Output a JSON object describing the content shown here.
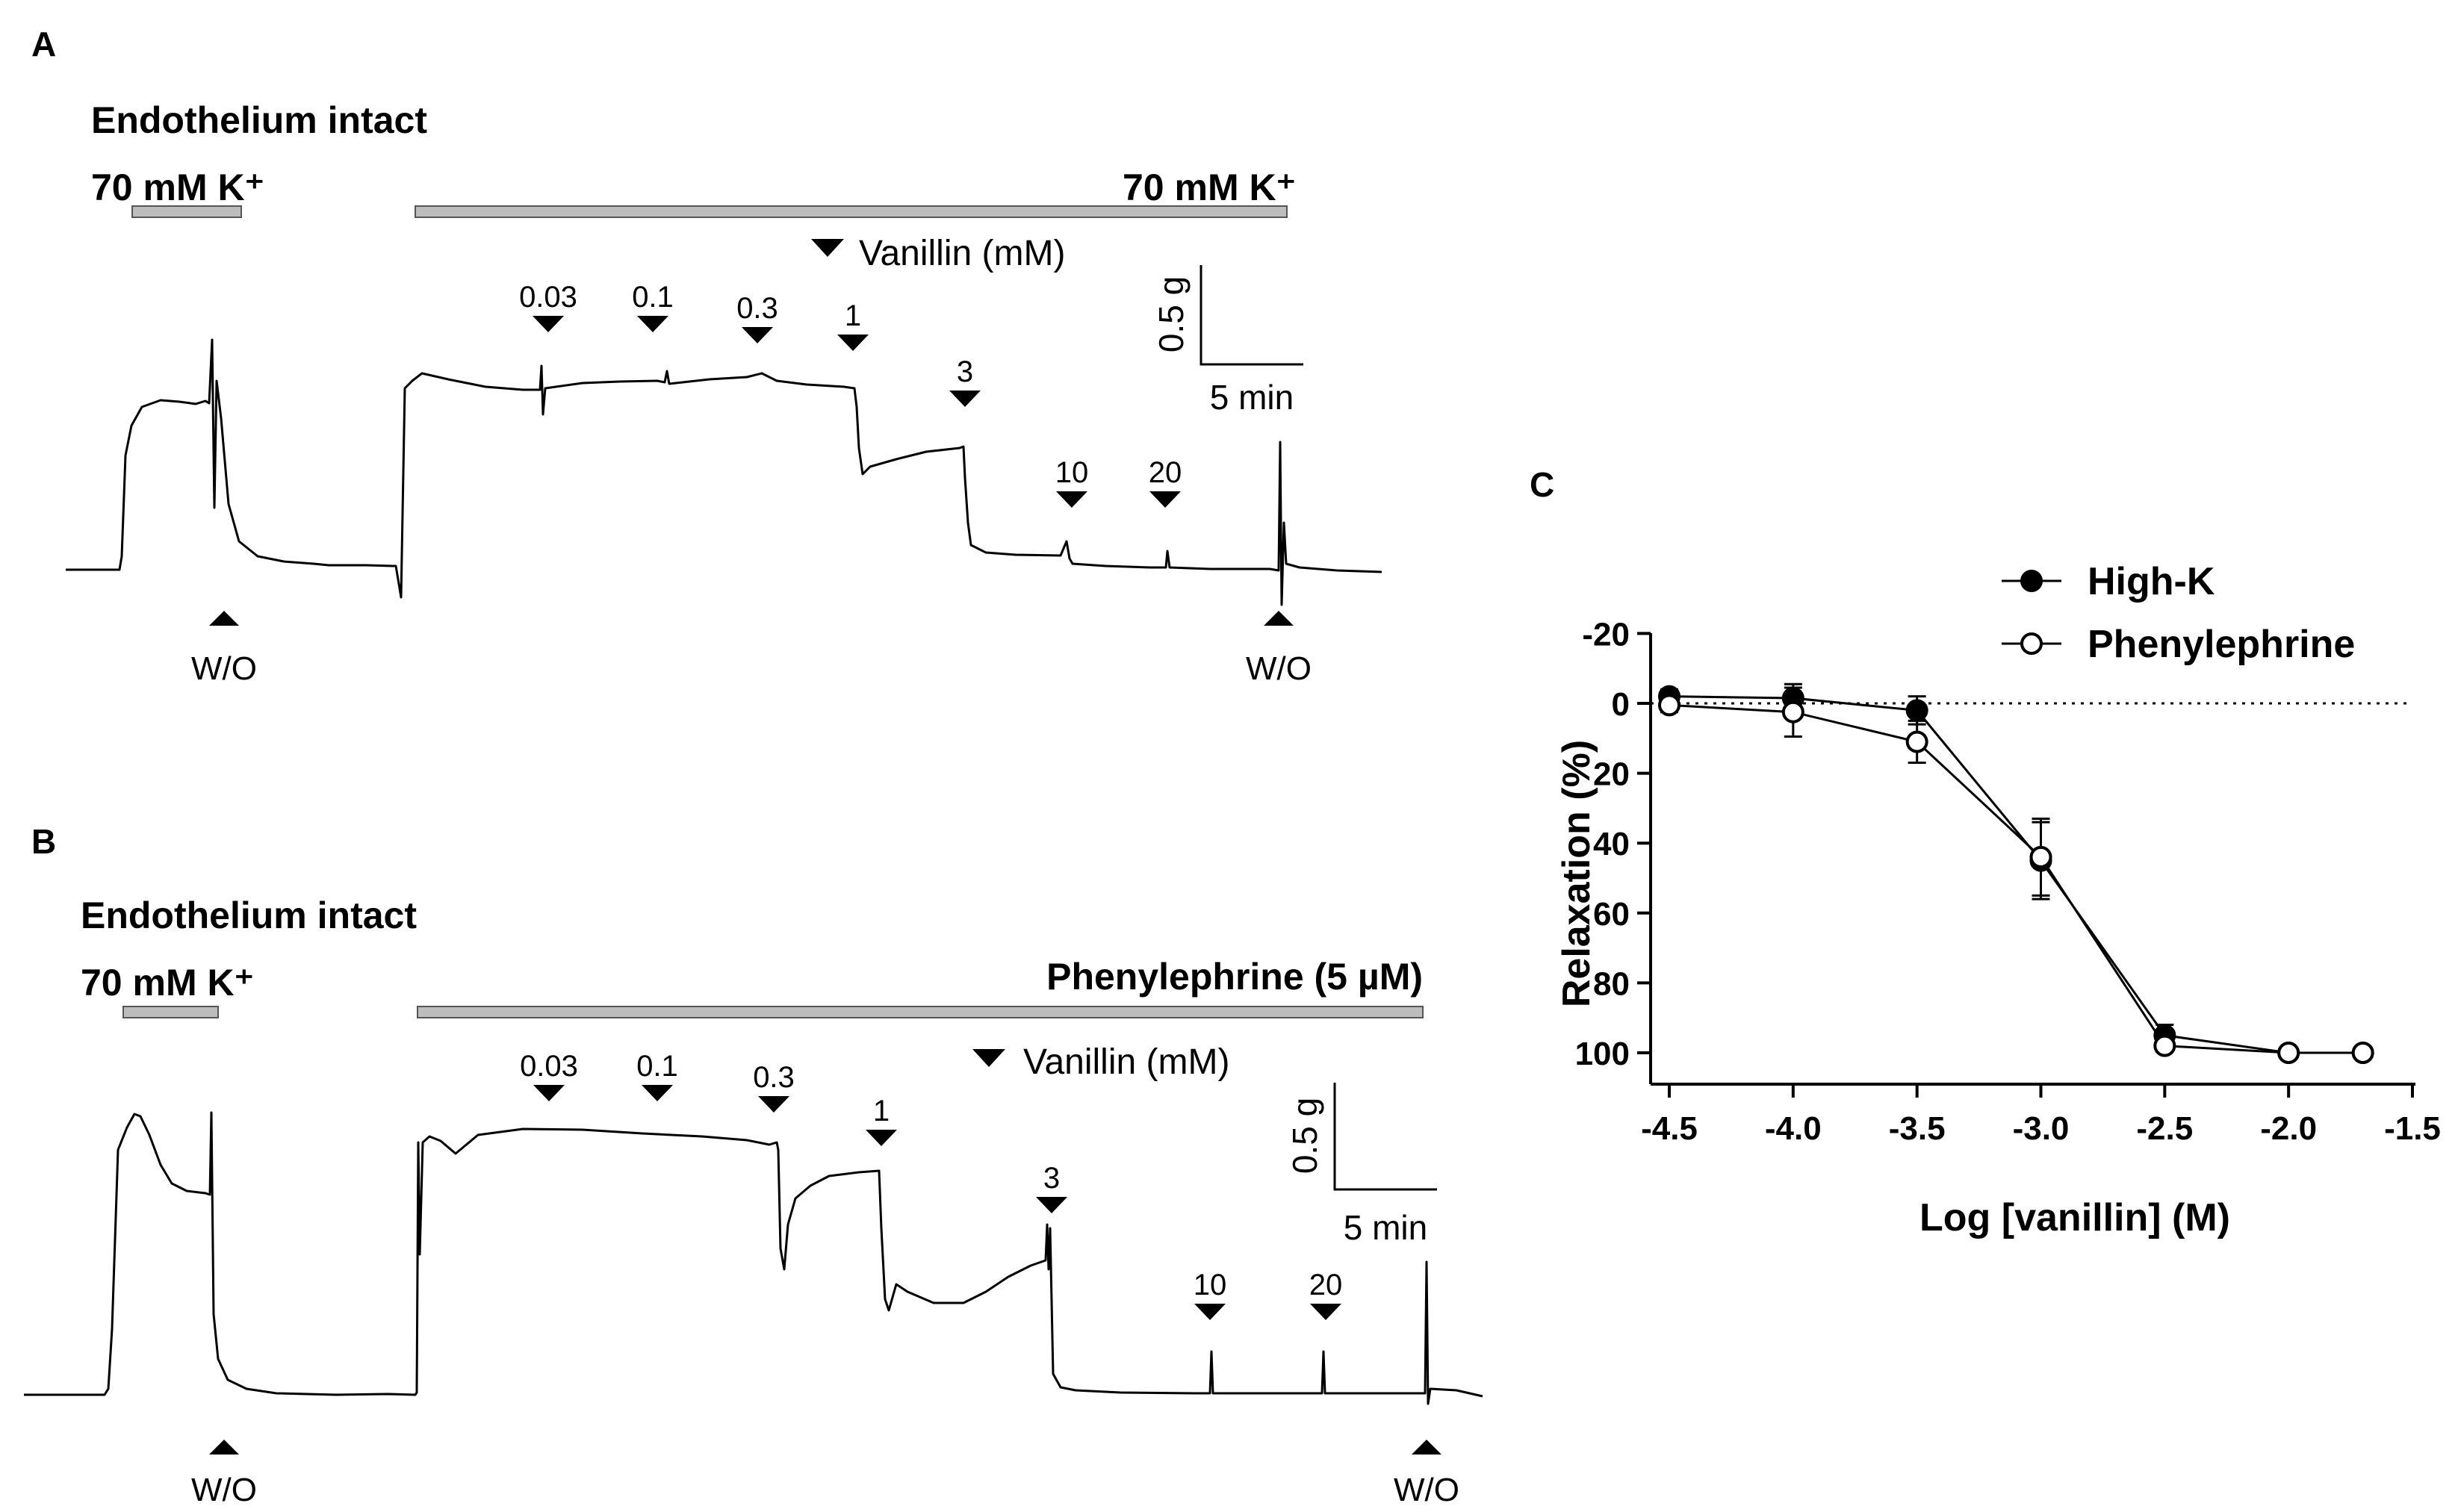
{
  "panels": {
    "A": {
      "letter": "A",
      "title": "Endothelium intact",
      "first_stim": "70 mM K⁺",
      "second_stim": "70 mM K⁺",
      "drug_legend": "Vanillin (mM)",
      "doses": [
        "0.03",
        "0.1",
        "0.3",
        "1",
        "3",
        "10",
        "20"
      ],
      "washout": [
        "W/O",
        "W/O"
      ],
      "scale_force": "0.5 g",
      "scale_time": "5 min"
    },
    "B": {
      "letter": "B",
      "title": "Endothelium intact",
      "first_stim": "70 mM K⁺",
      "second_stim": "Phenylephrine (5 µM)",
      "drug_legend": "Vanillin (mM)",
      "doses": [
        "0.03",
        "0.1",
        "0.3",
        "1",
        "3",
        "10",
        "20"
      ],
      "washout": [
        "W/O",
        "W/O"
      ],
      "scale_force": "0.5 g",
      "scale_time": "5 min"
    }
  },
  "chart_data": {
    "panel_label": "C",
    "type": "line",
    "xlabel": "Log [vanillin] (M)",
    "ylabel": "Relaxation (%)",
    "xlim": [
      -4.5,
      -1.5
    ],
    "ylim": [
      -20,
      110
    ],
    "y_inverted": true,
    "x_ticks": [
      "-4.5",
      "-4.0",
      "-3.5",
      "-3.0",
      "-2.5",
      "-2.0",
      "-1.5"
    ],
    "y_ticks": [
      "-20",
      "0",
      "20",
      "40",
      "60",
      "80",
      "100"
    ],
    "reference_line_y": 0,
    "legend_position": "top-right",
    "series": [
      {
        "name": "High-K",
        "marker": "filled-circle",
        "x": [
          -4.5,
          -4.0,
          -3.5,
          -3.0,
          -2.5,
          -2.0,
          -1.7
        ],
        "values": [
          -2,
          -1.5,
          2,
          45,
          95,
          100,
          100
        ],
        "error": [
          2,
          4,
          4,
          11,
          3,
          1,
          1
        ]
      },
      {
        "name": "Phenylephrine",
        "marker": "open-circle",
        "x": [
          -4.5,
          -4.0,
          -3.5,
          -3.0,
          -2.5,
          -2.0,
          -1.7
        ],
        "values": [
          0.5,
          2.5,
          11,
          44,
          98,
          100,
          100
        ],
        "error": [
          2,
          7,
          6,
          11,
          1,
          1,
          1
        ]
      }
    ]
  }
}
